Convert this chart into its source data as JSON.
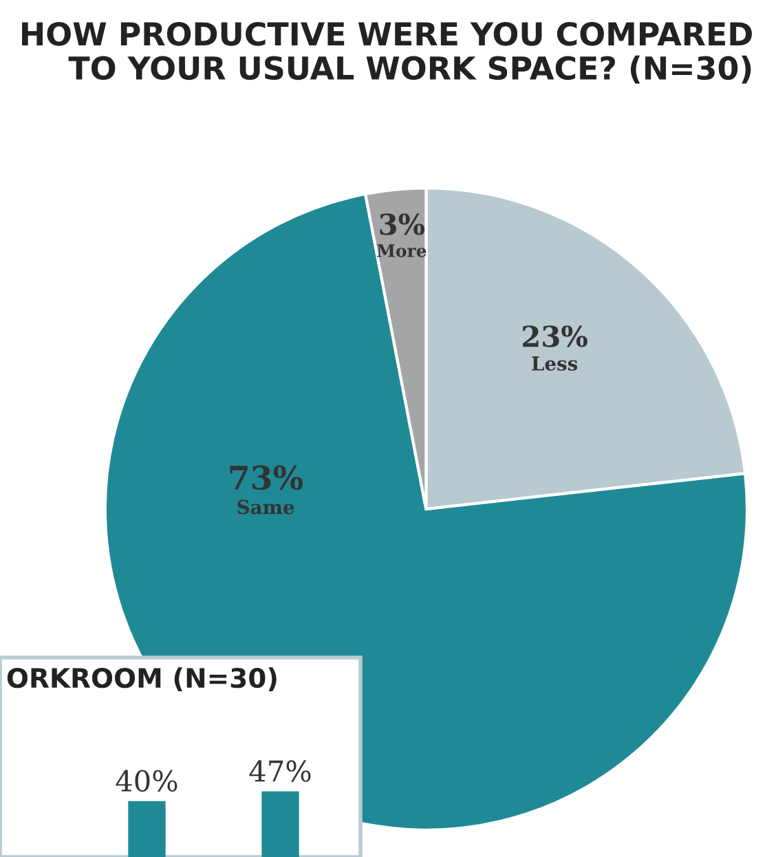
{
  "chart_data": [
    {
      "type": "pie",
      "title": "HOW PRODUCTIVE WERE YOU COMPARED\nTO YOUR USUAL WORK SPACE? (N=30)",
      "categories": [
        "Less",
        "Same",
        "More"
      ],
      "values": [
        23,
        73,
        3
      ],
      "colors": [
        "#b8c9d0",
        "#1f8a96",
        "#a3a5a6"
      ],
      "value_labels": [
        "23%",
        "73%",
        "3%"
      ]
    },
    {
      "type": "bar",
      "title": "ORKROOM (N=30)",
      "categories": [
        null,
        null
      ],
      "values": [
        40,
        47
      ],
      "color": "#1f8a96",
      "value_labels": [
        "40%",
        "47%"
      ]
    }
  ]
}
